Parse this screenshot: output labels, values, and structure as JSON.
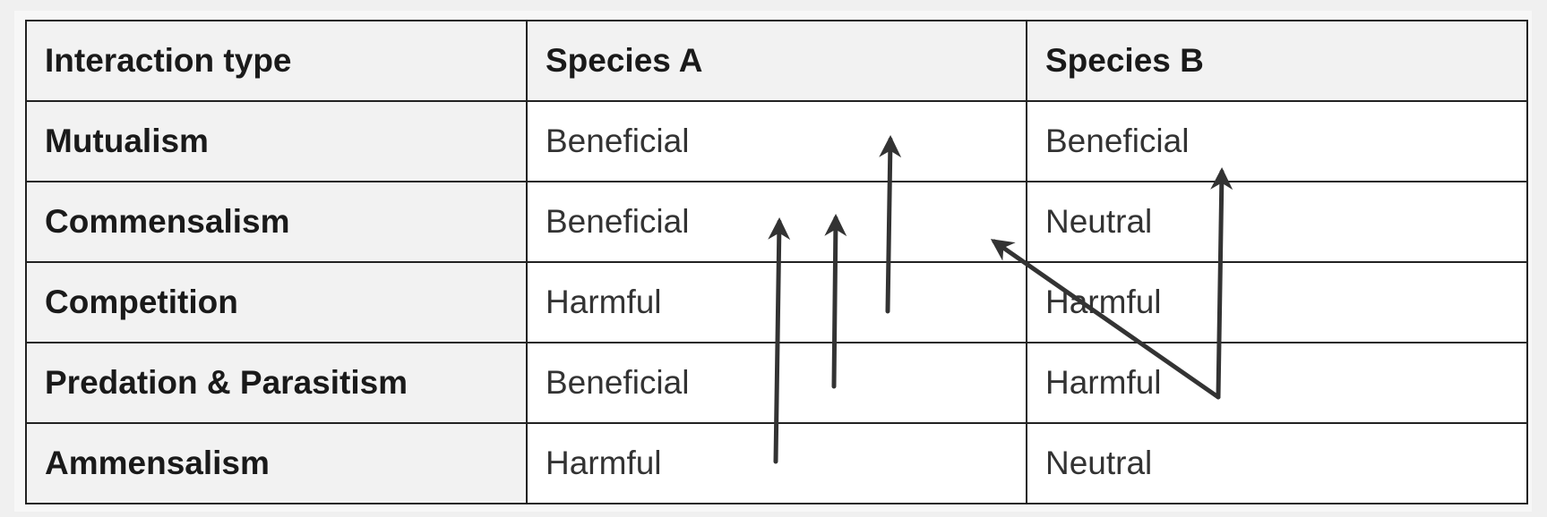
{
  "table": {
    "headers": [
      "Interaction type",
      "Species A",
      "Species B"
    ],
    "rows": [
      {
        "type": "Mutualism",
        "species_a": "Beneficial",
        "species_b": "Beneficial"
      },
      {
        "type": "Commensalism",
        "species_a": "Beneficial",
        "species_b": "Neutral"
      },
      {
        "type": "Competition",
        "species_a": "Harmful",
        "species_b": "Harmful"
      },
      {
        "type": "Predation & Parasitism",
        "species_a": "Beneficial",
        "species_b": "Harmful"
      },
      {
        "type": "Ammensalism",
        "species_a": "Harmful",
        "species_b": "Neutral"
      }
    ]
  },
  "colors": {
    "border": "#222222",
    "header_bg": "#f2f2f2",
    "cell_bg": "#ffffff",
    "arrow": "#333333"
  }
}
